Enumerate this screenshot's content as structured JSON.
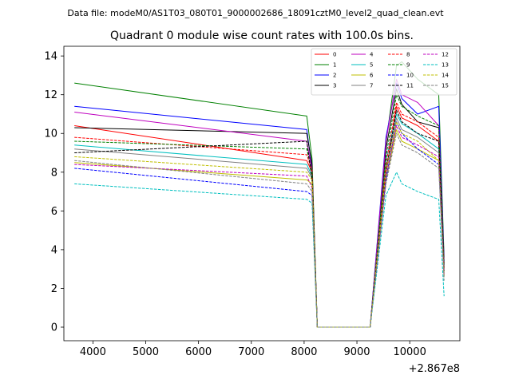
{
  "figure": {
    "suptitle": "Data file: modeM0/AS1T03_080T01_9000002686_18091cztM0_level2_quad_clean.evt",
    "x_offset_label": "+2.867e8"
  },
  "chart_data": {
    "type": "line",
    "title": "Quadrant 0 module wise count rates with 100.0s bins.",
    "xlabel": "",
    "ylabel": "",
    "xlim": [
      3450,
      10950
    ],
    "ylim": [
      -0.7,
      14.5
    ],
    "xticks": [
      4000,
      5000,
      6000,
      7000,
      8000,
      9000,
      10000
    ],
    "yticks": [
      0,
      2,
      4,
      6,
      8,
      10,
      12,
      14
    ],
    "xtick_labels": [
      "4000",
      "5000",
      "6000",
      "7000",
      "8000",
      "9000",
      "10000"
    ],
    "ytick_labels": [
      "0",
      "2",
      "4",
      "6",
      "8",
      "10",
      "12",
      "14"
    ],
    "x_offset": 286700000,
    "legend_position": "upper-right",
    "legend_columns": 4,
    "x": [
      3650,
      8050,
      8150,
      8250,
      9250,
      9550,
      9750,
      9850,
      10150,
      10550,
      10650
    ],
    "series": [
      {
        "name": "0",
        "color": "#ff0000",
        "dash": "solid",
        "values": [
          10.4,
          8.6,
          8.0,
          0.0,
          0.0,
          8.0,
          11.4,
          10.8,
          10.4,
          9.6,
          3.0
        ]
      },
      {
        "name": "1",
        "color": "#008000",
        "dash": "solid",
        "values": [
          12.6,
          10.9,
          8.7,
          0.0,
          0.0,
          9.5,
          13.5,
          13.7,
          12.8,
          12.0,
          3.6
        ]
      },
      {
        "name": "2",
        "color": "#0000ff",
        "dash": "solid",
        "values": [
          11.4,
          10.2,
          8.2,
          0.0,
          0.0,
          9.8,
          12.6,
          11.8,
          11.0,
          11.4,
          3.4
        ]
      },
      {
        "name": "3",
        "color": "#000000",
        "dash": "solid",
        "values": [
          10.3,
          10.0,
          8.4,
          0.0,
          0.0,
          9.2,
          12.3,
          11.5,
          10.6,
          10.3,
          3.3
        ]
      },
      {
        "name": "4",
        "color": "#bf00bf",
        "dash": "solid",
        "values": [
          11.1,
          9.6,
          8.1,
          0.0,
          0.0,
          9.6,
          12.8,
          12.0,
          11.6,
          10.4,
          3.2
        ]
      },
      {
        "name": "5",
        "color": "#00bfbf",
        "dash": "solid",
        "values": [
          9.4,
          8.4,
          7.8,
          0.0,
          0.0,
          8.6,
          11.0,
          10.5,
          10.0,
          9.2,
          2.9
        ]
      },
      {
        "name": "6",
        "color": "#bfbf00",
        "dash": "solid",
        "values": [
          8.5,
          7.6,
          7.4,
          0.0,
          0.0,
          7.6,
          10.2,
          9.6,
          9.2,
          8.6,
          2.7
        ]
      },
      {
        "name": "7",
        "color": "#808080",
        "dash": "solid",
        "values": [
          9.2,
          8.2,
          7.7,
          0.0,
          0.0,
          8.2,
          10.8,
          10.2,
          9.8,
          9.0,
          2.8
        ]
      },
      {
        "name": "8",
        "color": "#ff0000",
        "dash": "dashed",
        "values": [
          9.8,
          8.9,
          8.1,
          0.0,
          0.0,
          8.4,
          11.6,
          11.0,
          10.6,
          9.8,
          3.0
        ]
      },
      {
        "name": "9",
        "color": "#008000",
        "dash": "dashed",
        "values": [
          9.6,
          9.2,
          8.0,
          0.0,
          0.0,
          8.8,
          12.0,
          11.4,
          10.9,
          10.4,
          3.1
        ]
      },
      {
        "name": "10",
        "color": "#0000ff",
        "dash": "dashed",
        "values": [
          8.2,
          7.0,
          6.8,
          0.0,
          0.0,
          7.6,
          10.6,
          10.0,
          9.2,
          8.4,
          2.6
        ]
      },
      {
        "name": "11",
        "color": "#000000",
        "dash": "dashed",
        "values": [
          9.0,
          9.6,
          7.6,
          0.0,
          0.0,
          8.0,
          11.2,
          10.6,
          10.0,
          9.6,
          2.9
        ]
      },
      {
        "name": "12",
        "color": "#bf00bf",
        "dash": "dashed",
        "values": [
          8.4,
          7.8,
          7.2,
          0.0,
          0.0,
          7.8,
          10.4,
          9.8,
          9.4,
          8.8,
          2.7
        ]
      },
      {
        "name": "13",
        "color": "#00bfbf",
        "dash": "dashed",
        "values": [
          7.4,
          6.6,
          6.4,
          0.0,
          0.0,
          6.8,
          8.0,
          7.4,
          7.0,
          6.6,
          1.6
        ]
      },
      {
        "name": "14",
        "color": "#bfbf00",
        "dash": "dashed",
        "values": [
          8.8,
          8.0,
          7.6,
          0.0,
          0.0,
          8.0,
          10.6,
          10.0,
          9.6,
          8.6,
          2.6
        ]
      },
      {
        "name": "15",
        "color": "#808080",
        "dash": "dashed",
        "values": [
          8.6,
          7.4,
          7.0,
          0.0,
          0.0,
          7.4,
          10.0,
          9.4,
          9.0,
          8.2,
          2.4
        ]
      }
    ]
  }
}
